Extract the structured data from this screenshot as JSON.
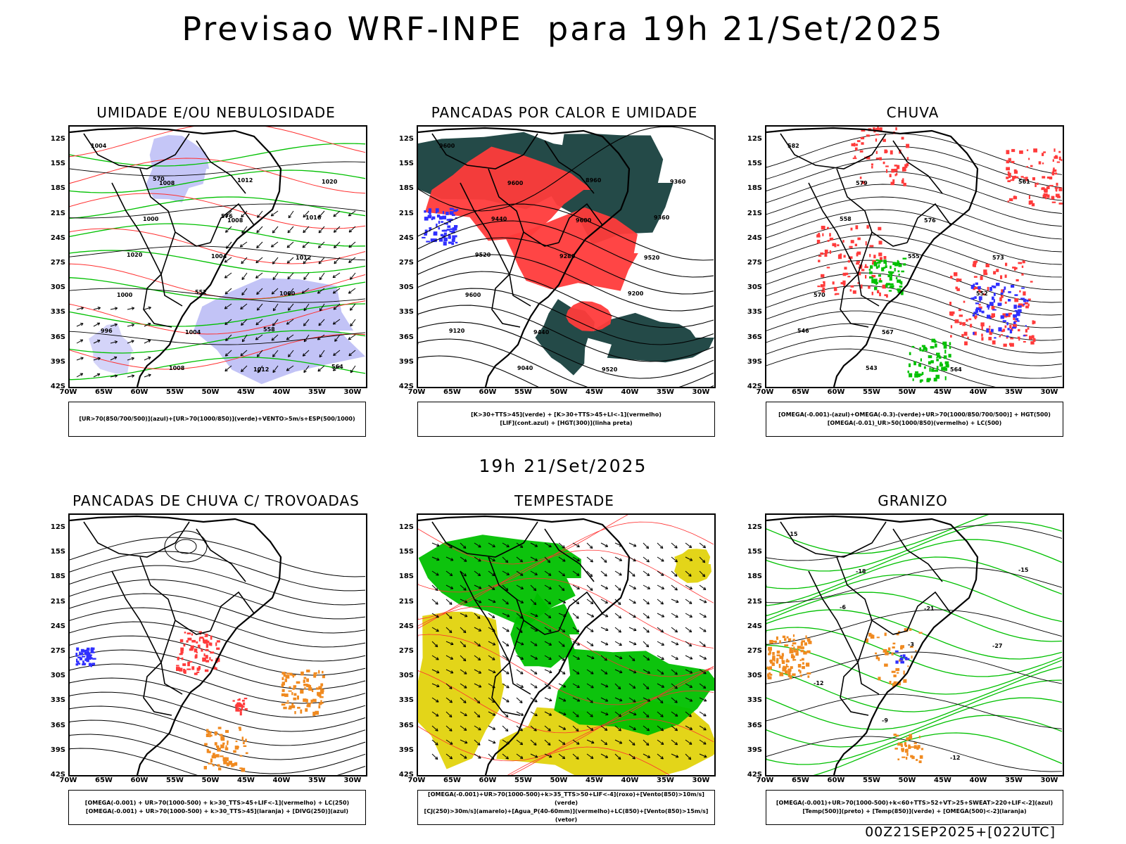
{
  "header": {
    "title": "Previsao WRF-INPE  para 19h 21/Set/2025",
    "mid_title": "19h 21/Set/2025",
    "footer": "00Z21SEP2025+[022UTC]"
  },
  "axes": {
    "lat_labels": [
      "12S",
      "15S",
      "18S",
      "21S",
      "24S",
      "27S",
      "30S",
      "33S",
      "36S",
      "39S",
      "42S"
    ],
    "lon_labels": [
      "70W",
      "65W",
      "60W",
      "55W",
      "50W",
      "45W",
      "40W",
      "35W",
      "30W"
    ]
  },
  "colors": {
    "blue_shade": "#b7b8f5",
    "red_shade": "#ff3b3b",
    "dark_teal": "#244a48",
    "green": "#00c000",
    "yellow": "#e0d000",
    "orange": "#f08a20",
    "contour_blue": "#3030ff",
    "contour_red": "#ff3030"
  },
  "panels": [
    {
      "title": "UMIDADE E/OU NEBULOSIDADE",
      "legend": [
        "[UR>70(850/700/500)](azul)+[UR>70(1000/850)](verde)+VENTO>5m/s+ESP(500/1000)"
      ],
      "contour_labels": [
        "1004",
        "1008",
        "1008",
        "1012",
        "1000",
        "1004",
        "1012",
        "1020",
        "1000",
        "1004",
        "1000",
        "996",
        "1008",
        "1012",
        "1016",
        "1020",
        "552",
        "558",
        "564",
        "570",
        "576"
      ]
    },
    {
      "title": "PANCADAS POR CALOR E UMIDADE",
      "legend": [
        "[K>30+TTS>45](verde) + [K>30+TTS>45+LI<-1](vermelho)",
        "[LIF](cont.azul) + [HGT(300)](linha preta)"
      ],
      "contour_labels": [
        "9600",
        "9600",
        "9600",
        "9520",
        "9600",
        "9440",
        "9520",
        "9360",
        "9440",
        "9280",
        "9200",
        "9120",
        "9040",
        "8960",
        "9360",
        "9520"
      ]
    },
    {
      "title": "CHUVA",
      "legend": [
        "[OMEGA(-0.001)-(azul)+OMEGA(-0.3)-(verde)+UR>70(1000/850/700/500)] + HGT(500)",
        "[OMEGA(-0.01)_UR>50(1000/850)(vermelho) + LC(500)"
      ],
      "contour_labels": [
        "582",
        "579",
        "576",
        "573",
        "570",
        "567",
        "564",
        "561",
        "558",
        "555",
        "552",
        "546",
        "543"
      ]
    },
    {
      "title": "PANCADAS DE CHUVA C/ TROVOADAS",
      "legend": [
        "[OMEGA(-0.001) + UR>70(1000-500) + k>30_TTS>45+LIF<-1](vermelho) + LC(250)",
        "[OMEGA(-0.001) + UR>70(1000-500) + k>30_TTS>45](laranja) + [DIVG(250)](azul)"
      ],
      "contour_labels": []
    },
    {
      "title": "TEMPESTADE",
      "legend": [
        "[OMEGA(-0.001)+UR>70(1000-500)+k>35_TTS>50+LIF<-4](roxo)+[Vento(850)>10m/s](verde)",
        "[CJ(250)>30m/s](amarelo)+[Agua_P(40-60mm)](vermelho)+LC(850)+[Vento(850)>15m/s](vetor)"
      ],
      "contour_labels": []
    },
    {
      "title": "GRANIZO",
      "legend": [
        "[OMEGA(-0.001)+UR>70(1000-500)+k<60+TTS>52+VT>25+SWEAT>220+LIF<-2](azul)",
        "[Temp(500)](preto) + [Temp(850)](verde) + [OMEGA(500)<-2](laranja)"
      ],
      "contour_labels": [
        "-15",
        "-18",
        "-21",
        "-27",
        "-12",
        "-9",
        "-12",
        "-15",
        "-6",
        "-3"
      ]
    }
  ]
}
